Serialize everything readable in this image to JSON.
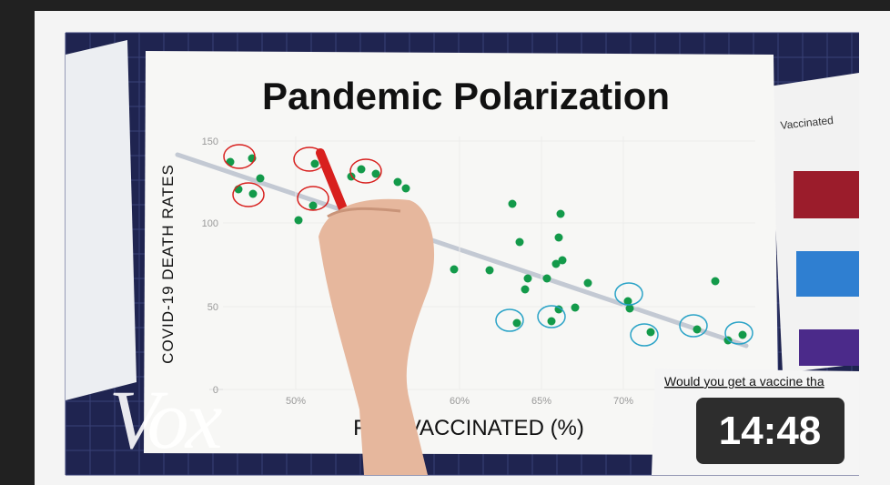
{
  "thumbnail": {
    "title": "Pandemic Polarization",
    "y_axis_label": "COVID-19 DEATH RATES",
    "x_axis_label": "FU    VACCINATED (%)",
    "y_ticks": [
      "150",
      "100",
      "50",
      "0"
    ],
    "x_ticks": [
      "50%",
      "60%",
      "65%",
      "70%"
    ],
    "side_card_title": "Vaccinated",
    "survey_question": "Would you get a vaccine tha",
    "logo": "Vox",
    "duration": "14:48"
  }
}
